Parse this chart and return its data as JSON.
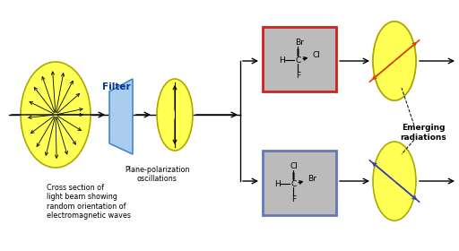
{
  "bg_color": "#ffffff",
  "yellow": "#ffff55",
  "yellow_edge": "#aaaa00",
  "blue_filter": "#aaccee",
  "blue_filter_edge": "#4488cc",
  "box1_edge": "#cc2222",
  "box2_edge": "#6677bb",
  "box_fill": "#bbbbbb",
  "label1": "Cross section of\nlight beam showing\nrandom orientation of\nelectromagnetic waves",
  "label2": "Plane-polarization\noscillations",
  "label3": "Emerging\nradiations",
  "filter_label": "Filter",
  "filter_label_color": "#003399"
}
